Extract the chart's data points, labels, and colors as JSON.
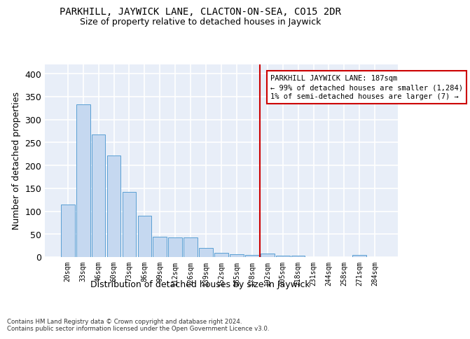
{
  "title": "PARKHILL, JAYWICK LANE, CLACTON-ON-SEA, CO15 2DR",
  "subtitle": "Size of property relative to detached houses in Jaywick",
  "xlabel": "Distribution of detached houses by size in Jaywick",
  "ylabel": "Number of detached properties",
  "categories": [
    "20sqm",
    "33sqm",
    "46sqm",
    "60sqm",
    "73sqm",
    "86sqm",
    "99sqm",
    "112sqm",
    "126sqm",
    "139sqm",
    "152sqm",
    "165sqm",
    "178sqm",
    "192sqm",
    "205sqm",
    "218sqm",
    "231sqm",
    "244sqm",
    "258sqm",
    "271sqm",
    "284sqm"
  ],
  "values": [
    115,
    333,
    267,
    222,
    142,
    90,
    45,
    43,
    43,
    20,
    10,
    7,
    4,
    8,
    3,
    3,
    0,
    0,
    0,
    4,
    0
  ],
  "bar_color": "#c5d8f0",
  "bar_edge_color": "#5a9fd4",
  "background_color": "#e8eef8",
  "grid_color": "#ffffff",
  "vline_x_index": 13,
  "vline_color": "#cc0000",
  "annotation_line1": "PARKHILL JAYWICK LANE: 187sqm",
  "annotation_line2": "← 99% of detached houses are smaller (1,284)",
  "annotation_line3": "1% of semi-detached houses are larger (7) →",
  "footer": "Contains HM Land Registry data © Crown copyright and database right 2024.\nContains public sector information licensed under the Open Government Licence v3.0.",
  "ylim": [
    0,
    420
  ],
  "title_fontsize": 10,
  "subtitle_fontsize": 9,
  "tick_fontsize": 7,
  "ylabel_fontsize": 9,
  "annotation_fontsize": 7.5
}
